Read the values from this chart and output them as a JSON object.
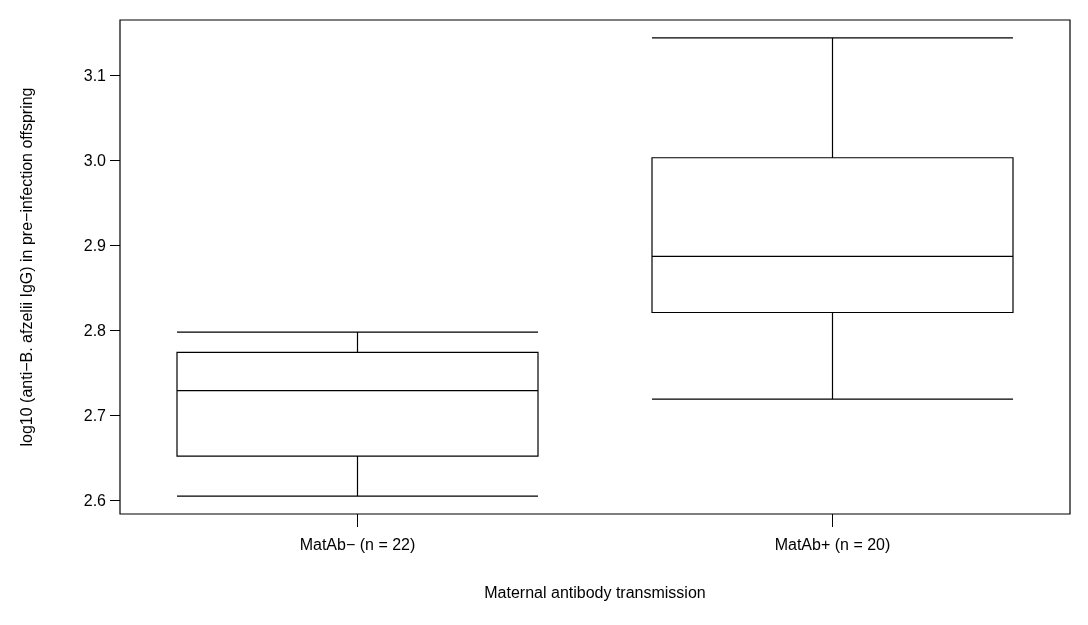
{
  "chart_data": {
    "type": "box",
    "xlabel": "Maternal antibody transmission",
    "ylabel": "log10 (anti−B. afzelii IgG) in pre−infection offspring",
    "categories": [
      "MatAb− (n = 22)",
      "MatAb+ (n = 20)"
    ],
    "boxes": [
      {
        "low": 2.605,
        "q1": 2.652,
        "median": 2.729,
        "q3": 2.774,
        "high": 2.798
      },
      {
        "low": 2.719,
        "q1": 2.821,
        "median": 2.887,
        "q3": 3.003,
        "high": 3.144
      }
    ],
    "ylim": [
      2.584,
      3.165
    ],
    "yticks": [
      2.6,
      2.7,
      2.8,
      2.9,
      {
        "value": 3,
        "label": "3.0"
      },
      3.1
    ],
    "grid": false
  }
}
